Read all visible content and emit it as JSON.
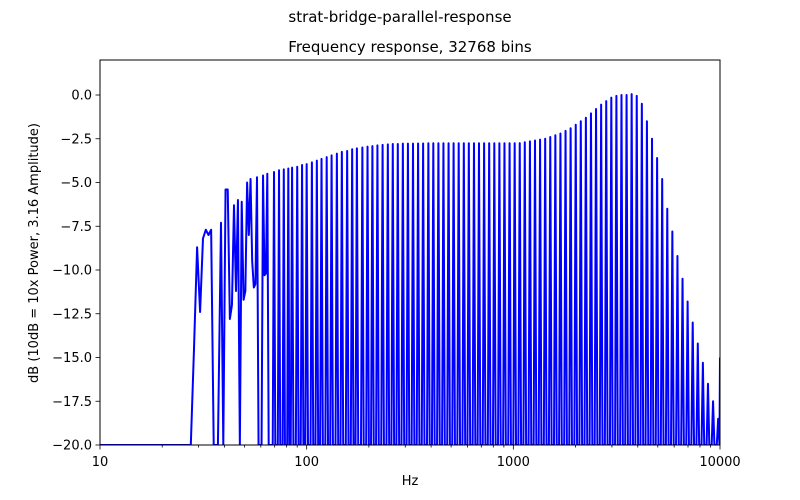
{
  "chart_data": {
    "type": "line",
    "suptitle": "strat-bridge-parallel-response",
    "title": "Frequency response, 32768 bins",
    "xlabel": "Hz",
    "ylabel": "dB (10dB = 10x Power, 3.16 Amplitude)",
    "xscale": "log",
    "xlim": [
      10,
      10000
    ],
    "ylim": [
      -20,
      2
    ],
    "xticks": [
      10,
      100,
      1000,
      10000
    ],
    "xtick_labels": [
      "10",
      "100",
      "1000",
      "10000"
    ],
    "yticks": [
      0.0,
      -2.5,
      -5.0,
      -7.5,
      -10.0,
      -12.5,
      -15.0,
      -17.5,
      -20.0
    ],
    "ytick_labels": [
      "0.0",
      "−2.5",
      "−5.0",
      "−7.5",
      "−10.0",
      "−12.5",
      "−15.0",
      "−17.5",
      "−20.0"
    ],
    "grid": false,
    "line_color": "#0000ff",
    "series": [
      {
        "color": "#0000ff",
        "x": [
          10,
          27.5,
          28.5,
          29.5,
          30.5,
          31.5,
          32.5,
          33.5,
          34.5,
          35.5,
          36.5,
          37.2,
          38.5,
          39.5,
          40.5,
          41.5,
          42.5,
          43.5,
          44.5,
          45.5,
          46.5,
          47.5,
          48.5,
          49.5,
          50.5,
          51.5,
          52.5,
          53.5,
          54.5,
          55.5,
          56.5,
          57.5,
          58.5,
          59.5,
          60.5,
          61.5,
          62.5,
          63.5,
          64.5,
          65.5,
          66.5,
          67.5,
          68.5,
          69.5,
          70.5,
          71.5,
          72.5,
          73.5,
          74.5,
          75.5,
          76.5,
          77.5,
          78.5,
          79.5,
          80.5,
          81.5,
          82.5,
          83.5
        ],
        "y": [
          -20,
          -20,
          -14.5,
          -8.7,
          -12.4,
          -8.2,
          -7.7,
          -8.0,
          -7.7,
          -20,
          -20,
          -20,
          -7.3,
          -20,
          -5.4,
          -5.4,
          -12.8,
          -12,
          -6.3,
          -11.2,
          -6.0,
          -20,
          -6.1,
          -11.7,
          -11.2,
          -5.0,
          -8.0,
          -4.8,
          -9.5,
          -11.0,
          -10.8,
          -4.7,
          -20,
          -20,
          -20,
          -4.6,
          -10.3,
          -10.2,
          -4.5,
          -20,
          -20,
          -20,
          -20,
          -4.4,
          -20,
          -20,
          -20,
          -4.3,
          -20,
          -20,
          -20,
          -4.25,
          -20,
          -20,
          -20,
          -4.2,
          -20,
          -20
        ]
      },
      {
        "color": "#0000ff",
        "peaks_x": [
          85,
          90,
          95,
          100,
          106,
          112,
          118,
          125,
          132,
          140,
          148,
          157,
          166,
          175,
          186,
          197,
          208,
          220,
          233,
          247,
          261,
          276,
          292,
          309,
          327,
          346,
          366,
          388,
          410,
          434,
          459,
          486,
          514,
          544,
          576,
          609,
          645,
          682,
          722,
          764,
          809,
          856,
          906,
          959,
          1015,
          1074,
          1136,
          1203,
          1273,
          1347,
          1426,
          1509,
          1597,
          1690,
          1789,
          1893,
          2004,
          2120,
          2244,
          2375,
          2513,
          2660,
          2815,
          2979,
          3153,
          3337,
          3531,
          3737,
          3955,
          4186,
          4430,
          4688,
          4962,
          5251,
          5557,
          5881,
          6224,
          6587,
          6971,
          7378,
          7808,
          8263,
          8745,
          9255,
          9795
        ],
        "peaks_y": [
          -4.15,
          -4.1,
          -4.0,
          -3.95,
          -3.85,
          -3.75,
          -3.65,
          -3.55,
          -3.45,
          -3.35,
          -3.25,
          -3.2,
          -3.1,
          -3.05,
          -3.0,
          -2.95,
          -2.92,
          -2.88,
          -2.85,
          -2.82,
          -2.8,
          -2.8,
          -2.78,
          -2.78,
          -2.78,
          -2.77,
          -2.77,
          -2.76,
          -2.76,
          -2.76,
          -2.76,
          -2.76,
          -2.76,
          -2.76,
          -2.76,
          -2.76,
          -2.76,
          -2.76,
          -2.76,
          -2.76,
          -2.76,
          -2.76,
          -2.76,
          -2.76,
          -2.76,
          -2.75,
          -2.7,
          -2.65,
          -2.6,
          -2.55,
          -2.5,
          -2.4,
          -2.3,
          -2.2,
          -2.05,
          -1.9,
          -1.7,
          -1.5,
          -1.3,
          -1.05,
          -0.8,
          -0.55,
          -0.35,
          -0.15,
          -0.05,
          0.0,
          0.0,
          0.05,
          -0.05,
          -0.5,
          -1.5,
          -2.5,
          -3.6,
          -4.8,
          -6.5,
          -7.8,
          -9.2,
          -10.5,
          -11.8,
          -13.0,
          -14.2,
          -15.3,
          -16.5,
          -17.5,
          -18.5
        ],
        "baseline_y": -20
      }
    ]
  }
}
